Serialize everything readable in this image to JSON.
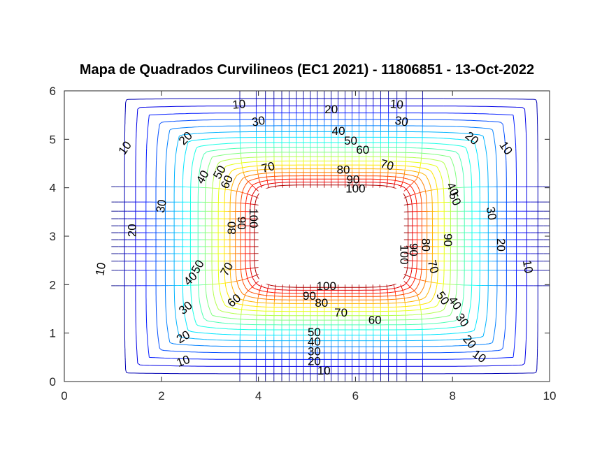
{
  "chart_data": {
    "type": "contour",
    "title": "Mapa de Quadrados Curvilineos (EC1 2021) - 11806851 - 13-Oct-2022",
    "xlabel": "",
    "ylabel": "",
    "xlim": [
      0,
      10
    ],
    "ylim": [
      0,
      6
    ],
    "xticks": [
      "0",
      "2",
      "4",
      "6",
      "8",
      "10"
    ],
    "yticks": [
      "0",
      "1",
      "2",
      "3",
      "4",
      "5",
      "6"
    ],
    "grid": false,
    "legend": "none",
    "colormap": "jet",
    "conductor": {
      "x": [
        4,
        7
      ],
      "y": [
        2,
        4
      ],
      "potential": 100
    },
    "outer_potential": 0,
    "equipotential_levels": [
      10,
      20,
      30,
      40,
      50,
      60,
      70,
      80,
      90,
      100
    ],
    "contour_labels": [
      {
        "text": "10",
        "x": 3.6,
        "y": 5.72,
        "angle": -5
      },
      {
        "text": "20",
        "x": 5.5,
        "y": 5.62,
        "angle": 0
      },
      {
        "text": "10",
        "x": 6.85,
        "y": 5.72,
        "angle": 5
      },
      {
        "text": "30",
        "x": 4.0,
        "y": 5.37,
        "angle": -10
      },
      {
        "text": "30",
        "x": 6.95,
        "y": 5.37,
        "angle": 10
      },
      {
        "text": "40",
        "x": 5.65,
        "y": 5.17,
        "angle": 0
      },
      {
        "text": "50",
        "x": 5.9,
        "y": 4.97,
        "angle": 0
      },
      {
        "text": "60",
        "x": 6.15,
        "y": 4.78,
        "angle": 0
      },
      {
        "text": "20",
        "x": 2.5,
        "y": 5.02,
        "angle": -45
      },
      {
        "text": "20",
        "x": 8.4,
        "y": 5.02,
        "angle": 40
      },
      {
        "text": "10",
        "x": 1.25,
        "y": 4.82,
        "angle": -55
      },
      {
        "text": "10",
        "x": 9.1,
        "y": 4.82,
        "angle": 55
      },
      {
        "text": "70",
        "x": 4.2,
        "y": 4.42,
        "angle": -15
      },
      {
        "text": "70",
        "x": 6.65,
        "y": 4.47,
        "angle": 15
      },
      {
        "text": "80",
        "x": 5.75,
        "y": 4.37,
        "angle": 0
      },
      {
        "text": "90",
        "x": 5.95,
        "y": 4.17,
        "angle": 0
      },
      {
        "text": "100",
        "x": 6.0,
        "y": 3.98,
        "angle": 0
      },
      {
        "text": "40",
        "x": 2.85,
        "y": 4.22,
        "angle": -60
      },
      {
        "text": "50",
        "x": 3.2,
        "y": 4.32,
        "angle": -60
      },
      {
        "text": "60",
        "x": 3.35,
        "y": 4.12,
        "angle": -65
      },
      {
        "text": "40",
        "x": 8.0,
        "y": 3.97,
        "angle": 65
      },
      {
        "text": "50",
        "x": 8.05,
        "y": 3.77,
        "angle": 65
      },
      {
        "text": "30",
        "x": 2.0,
        "y": 3.62,
        "angle": -80
      },
      {
        "text": "30",
        "x": 8.8,
        "y": 3.47,
        "angle": 80
      },
      {
        "text": "100",
        "x": 3.9,
        "y": 3.37,
        "angle": 90
      },
      {
        "text": "90",
        "x": 3.65,
        "y": 3.27,
        "angle": 90
      },
      {
        "text": "80",
        "x": 3.45,
        "y": 3.17,
        "angle": -90
      },
      {
        "text": "20",
        "x": 1.4,
        "y": 3.12,
        "angle": -90
      },
      {
        "text": "90",
        "x": 7.9,
        "y": 2.92,
        "angle": 90
      },
      {
        "text": "80",
        "x": 7.45,
        "y": 2.82,
        "angle": 90
      },
      {
        "text": "90",
        "x": 7.2,
        "y": 2.72,
        "angle": 90
      },
      {
        "text": "100",
        "x": 7.0,
        "y": 2.62,
        "angle": 90
      },
      {
        "text": "20",
        "x": 9.0,
        "y": 2.82,
        "angle": 90
      },
      {
        "text": "10",
        "x": 0.75,
        "y": 2.32,
        "angle": -80
      },
      {
        "text": "10",
        "x": 9.55,
        "y": 2.37,
        "angle": 80
      },
      {
        "text": "70",
        "x": 7.6,
        "y": 2.37,
        "angle": 75
      },
      {
        "text": "50",
        "x": 2.75,
        "y": 2.37,
        "angle": -60
      },
      {
        "text": "70",
        "x": 3.35,
        "y": 2.32,
        "angle": -60
      },
      {
        "text": "40",
        "x": 2.6,
        "y": 2.12,
        "angle": -45
      },
      {
        "text": "100",
        "x": 5.4,
        "y": 1.97,
        "angle": 0
      },
      {
        "text": "90",
        "x": 5.05,
        "y": 1.77,
        "angle": 0
      },
      {
        "text": "50",
        "x": 7.8,
        "y": 1.72,
        "angle": 55
      },
      {
        "text": "40",
        "x": 8.05,
        "y": 1.62,
        "angle": 55
      },
      {
        "text": "60",
        "x": 3.5,
        "y": 1.67,
        "angle": -40
      },
      {
        "text": "80",
        "x": 5.3,
        "y": 1.62,
        "angle": 0
      },
      {
        "text": "70",
        "x": 5.7,
        "y": 1.42,
        "angle": 0
      },
      {
        "text": "60",
        "x": 6.4,
        "y": 1.27,
        "angle": 0
      },
      {
        "text": "30",
        "x": 2.5,
        "y": 1.52,
        "angle": -40
      },
      {
        "text": "30",
        "x": 8.2,
        "y": 1.27,
        "angle": 55
      },
      {
        "text": "50",
        "x": 5.15,
        "y": 1.02,
        "angle": 0
      },
      {
        "text": "40",
        "x": 5.15,
        "y": 0.82,
        "angle": 0
      },
      {
        "text": "20",
        "x": 2.45,
        "y": 0.92,
        "angle": -30
      },
      {
        "text": "20",
        "x": 8.35,
        "y": 0.82,
        "angle": 50
      },
      {
        "text": "30",
        "x": 5.15,
        "y": 0.62,
        "angle": 0
      },
      {
        "text": "10",
        "x": 2.45,
        "y": 0.42,
        "angle": -20
      },
      {
        "text": "10",
        "x": 8.55,
        "y": 0.52,
        "angle": 35
      },
      {
        "text": "20",
        "x": 5.15,
        "y": 0.42,
        "angle": 0
      },
      {
        "text": "10",
        "x": 5.35,
        "y": 0.22,
        "angle": 0
      }
    ]
  }
}
